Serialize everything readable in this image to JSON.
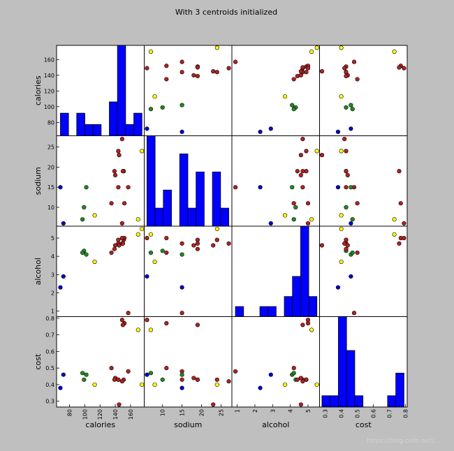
{
  "chart_data": {
    "type": "scatter",
    "title": "With 3 centroids initialized",
    "variables": [
      "calories",
      "sodium",
      "alcohol",
      "cost"
    ],
    "ranges": {
      "calories": [
        63,
        178
      ],
      "sodium": [
        5.3,
        27.8
      ],
      "alcohol": [
        0.7,
        5.65
      ],
      "cost": [
        0.265,
        0.81
      ]
    },
    "ticks": {
      "calories": [
        80,
        100,
        120,
        140,
        160
      ],
      "sodium": [
        10,
        15,
        20,
        25
      ],
      "alcohol": [
        1,
        2,
        3,
        4,
        5
      ],
      "cost": [
        0.3,
        0.4,
        0.5,
        0.6,
        0.7,
        0.8
      ]
    },
    "tick_labels": {
      "calories": [
        "80",
        "100",
        "120",
        "140",
        "160"
      ],
      "sodium": [
        "10",
        "15",
        "20",
        "25"
      ],
      "alcohol": [
        "1",
        "2",
        "3",
        "4",
        "5"
      ],
      "cost": [
        "0.3",
        "0.4",
        "0.5",
        "0.6",
        "0.7",
        "0.8"
      ]
    },
    "histogram_bins": 10,
    "bar_color": "#0000ff",
    "cluster_colors": [
      "#b22222",
      "#228b22",
      "#0000cd",
      "#ffff00"
    ],
    "points": [
      {
        "calories": 144,
        "sodium": 15,
        "alcohol": 4.7,
        "cost": 0.43,
        "cluster": 0
      },
      {
        "calories": 151,
        "sodium": 19,
        "alcohol": 4.9,
        "cost": 0.43,
        "cluster": 0
      },
      {
        "calories": 157,
        "sodium": 15,
        "alcohol": 0.9,
        "cost": 0.48,
        "cluster": 0
      },
      {
        "calories": 170,
        "sodium": 7,
        "alcohol": 5.2,
        "cost": 0.73,
        "cluster": 3
      },
      {
        "calories": 152,
        "sodium": 11,
        "alcohol": 5.0,
        "cost": 0.77,
        "cluster": 0
      },
      {
        "calories": 145,
        "sodium": 23,
        "alcohol": 4.6,
        "cost": 0.28,
        "cluster": 0
      },
      {
        "calories": 175,
        "sodium": 24,
        "alcohol": 5.5,
        "cost": 0.4,
        "cluster": 3
      },
      {
        "calories": 149,
        "sodium": 27,
        "alcohol": 4.7,
        "cost": 0.42,
        "cluster": 0
      },
      {
        "calories": 99,
        "sodium": 10,
        "alcohol": 4.3,
        "cost": 0.43,
        "cluster": 1
      },
      {
        "calories": 113,
        "sodium": 8,
        "alcohol": 3.7,
        "cost": 0.4,
        "cluster": 3
      },
      {
        "calories": 140,
        "sodium": 18,
        "alcohol": 4.6,
        "cost": 0.44,
        "cluster": 0
      },
      {
        "calories": 102,
        "sodium": 15,
        "alcohol": 4.1,
        "cost": 0.46,
        "cluster": 1
      },
      {
        "calories": 135,
        "sodium": 11,
        "alcohol": 4.2,
        "cost": 0.5,
        "cluster": 0
      },
      {
        "calories": 150,
        "sodium": 19,
        "alcohol": 4.7,
        "cost": 0.76,
        "cluster": 0
      },
      {
        "calories": 149,
        "sodium": 6,
        "alcohol": 5.0,
        "cost": 0.79,
        "cluster": 0
      },
      {
        "calories": 68,
        "sodium": 15,
        "alcohol": 2.3,
        "cost": 0.38,
        "cluster": 2
      },
      {
        "calories": 139,
        "sodium": 19,
        "alcohol": 4.4,
        "cost": 0.43,
        "cluster": 0
      },
      {
        "calories": 144,
        "sodium": 24,
        "alcohol": 4.9,
        "cost": 0.43,
        "cluster": 0
      },
      {
        "calories": 72,
        "sodium": 6,
        "alcohol": 2.9,
        "cost": 0.46,
        "cluster": 2
      },
      {
        "calories": 97,
        "sodium": 7,
        "alcohol": 4.2,
        "cost": 0.47,
        "cluster": 1
      }
    ]
  },
  "watermark": "https://blog.csdn.net/..."
}
